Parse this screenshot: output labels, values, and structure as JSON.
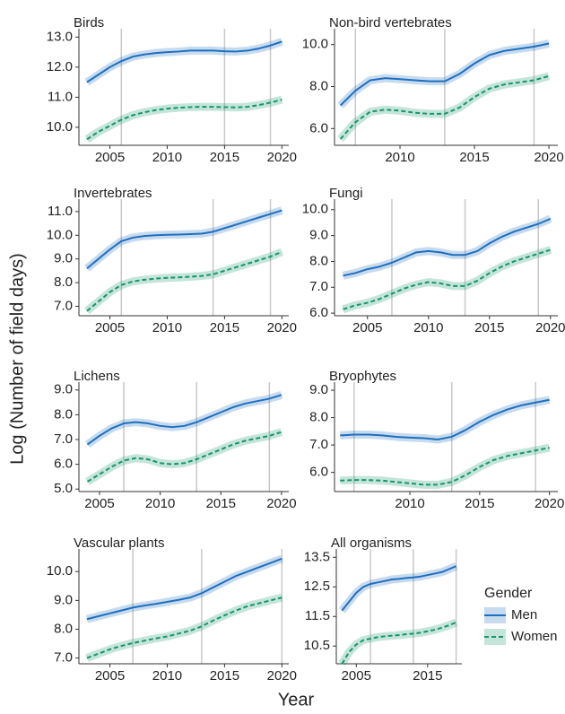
{
  "y_label": "Log (Number of field days)",
  "x_label": "Year",
  "legend_title": "Gender",
  "chart_data": [
    {
      "type": "line",
      "title": "Birds",
      "x": [
        2003,
        2004,
        2005,
        2006,
        2007,
        2008,
        2009,
        2010,
        2011,
        2012,
        2013,
        2014,
        2015,
        2016,
        2017,
        2018,
        2019,
        2020
      ],
      "xlim": [
        2002.3,
        2020.6
      ],
      "xticks": [
        2005,
        2010,
        2015,
        2020
      ],
      "ylim": [
        9.4,
        13.1
      ],
      "yticks": [
        {
          "value": 10,
          "label": "10.0"
        },
        {
          "value": 11,
          "label": "11.0"
        },
        {
          "value": 12,
          "label": "12.0"
        },
        {
          "value": 13,
          "label": "13.0"
        }
      ],
      "vlines": [
        2006,
        2015,
        2019
      ],
      "series": [
        {
          "name": "Men",
          "color": "#1f6fbf",
          "dash": false,
          "values": [
            11.5,
            11.75,
            12.0,
            12.2,
            12.35,
            12.42,
            12.47,
            12.5,
            12.52,
            12.55,
            12.55,
            12.55,
            12.53,
            12.52,
            12.55,
            12.62,
            12.72,
            12.85
          ]
        },
        {
          "name": "Women",
          "color": "#16966a",
          "dash": true,
          "values": [
            9.6,
            9.85,
            10.05,
            10.25,
            10.4,
            10.5,
            10.57,
            10.62,
            10.65,
            10.67,
            10.68,
            10.68,
            10.67,
            10.66,
            10.68,
            10.74,
            10.82,
            10.92
          ]
        }
      ]
    },
    {
      "type": "line",
      "title": "Non-bird vertebrates",
      "x": [
        2006,
        2007,
        2008,
        2009,
        2010,
        2011,
        2012,
        2013,
        2014,
        2015,
        2016,
        2017,
        2018,
        2019,
        2020
      ],
      "xlim": [
        2005.6,
        2020.6
      ],
      "xticks": [
        2010,
        2015,
        2020
      ],
      "ylim": [
        5.2,
        10.5
      ],
      "yticks": [
        {
          "value": 6,
          "label": "6.0"
        },
        {
          "value": 8,
          "label": "8.0"
        },
        {
          "value": 10,
          "label": "10.0"
        }
      ],
      "vlines": [
        2007,
        2013,
        2019
      ],
      "series": [
        {
          "name": "Men",
          "color": "#1f6fbf",
          "dash": false,
          "values": [
            7.1,
            7.8,
            8.3,
            8.4,
            8.35,
            8.3,
            8.25,
            8.25,
            8.6,
            9.1,
            9.5,
            9.7,
            9.8,
            9.9,
            10.05
          ]
        },
        {
          "name": "Women",
          "color": "#16966a",
          "dash": true,
          "values": [
            5.5,
            6.3,
            6.8,
            6.9,
            6.85,
            6.75,
            6.7,
            6.7,
            7.0,
            7.5,
            7.9,
            8.1,
            8.2,
            8.3,
            8.5
          ]
        }
      ]
    },
    {
      "type": "line",
      "title": "Invertebrates",
      "x": [
        2003,
        2004,
        2005,
        2006,
        2007,
        2008,
        2009,
        2010,
        2011,
        2012,
        2013,
        2014,
        2015,
        2016,
        2017,
        2018,
        2019,
        2020
      ],
      "xlim": [
        2002.3,
        2020.6
      ],
      "xticks": [
        2005,
        2010,
        2015,
        2020
      ],
      "ylim": [
        6.6,
        11.3
      ],
      "yticks": [
        {
          "value": 7,
          "label": "7.0"
        },
        {
          "value": 8,
          "label": "8.0"
        },
        {
          "value": 9,
          "label": "9.0"
        },
        {
          "value": 10,
          "label": "10.0"
        },
        {
          "value": 11,
          "label": "11.0"
        }
      ],
      "vlines": [
        2006,
        2014,
        2019
      ],
      "series": [
        {
          "name": "Men",
          "color": "#1f6fbf",
          "dash": false,
          "values": [
            8.6,
            9.0,
            9.4,
            9.75,
            9.9,
            9.97,
            10.0,
            10.02,
            10.03,
            10.05,
            10.07,
            10.15,
            10.3,
            10.45,
            10.6,
            10.75,
            10.9,
            11.05
          ]
        },
        {
          "name": "Women",
          "color": "#16966a",
          "dash": true,
          "values": [
            6.8,
            7.2,
            7.6,
            7.9,
            8.05,
            8.12,
            8.17,
            8.2,
            8.22,
            8.25,
            8.28,
            8.35,
            8.5,
            8.65,
            8.8,
            8.95,
            9.1,
            9.3
          ]
        }
      ]
    },
    {
      "type": "line",
      "title": "Fungi",
      "x": [
        2003,
        2004,
        2005,
        2006,
        2007,
        2008,
        2009,
        2010,
        2011,
        2012,
        2013,
        2014,
        2015,
        2016,
        2017,
        2018,
        2019,
        2020
      ],
      "xlim": [
        2002.3,
        2020.6
      ],
      "xticks": [
        2005,
        2010,
        2015,
        2020
      ],
      "ylim": [
        5.9,
        10.2
      ],
      "yticks": [
        {
          "value": 6,
          "label": "6.0"
        },
        {
          "value": 7,
          "label": "7.0"
        },
        {
          "value": 8,
          "label": "8.0"
        },
        {
          "value": 9,
          "label": "9.0"
        },
        {
          "value": 10,
          "label": "10.0"
        }
      ],
      "vlines": [
        2007,
        2013,
        2019
      ],
      "series": [
        {
          "name": "Men",
          "color": "#1f6fbf",
          "dash": false,
          "values": [
            7.45,
            7.55,
            7.7,
            7.8,
            7.95,
            8.15,
            8.35,
            8.4,
            8.35,
            8.25,
            8.25,
            8.4,
            8.7,
            8.95,
            9.15,
            9.3,
            9.45,
            9.65
          ]
        },
        {
          "name": "Women",
          "color": "#16966a",
          "dash": true,
          "values": [
            6.15,
            6.3,
            6.4,
            6.55,
            6.75,
            6.95,
            7.1,
            7.2,
            7.15,
            7.05,
            7.05,
            7.25,
            7.55,
            7.8,
            8.0,
            8.15,
            8.3,
            8.45
          ]
        }
      ]
    },
    {
      "type": "line",
      "title": "Lichens",
      "x": [
        2004,
        2005,
        2006,
        2007,
        2008,
        2009,
        2010,
        2011,
        2012,
        2013,
        2014,
        2015,
        2016,
        2017,
        2018,
        2019,
        2020
      ],
      "xlim": [
        2003.3,
        2020.6
      ],
      "xticks": [
        2005,
        2010,
        2015,
        2020
      ],
      "ylim": [
        4.9,
        9.1
      ],
      "yticks": [
        {
          "value": 5,
          "label": "5.0"
        },
        {
          "value": 6,
          "label": "6.0"
        },
        {
          "value": 7,
          "label": "7.0"
        },
        {
          "value": 8,
          "label": "8.0"
        },
        {
          "value": 9,
          "label": "9.0"
        }
      ],
      "vlines": [
        2007,
        2013,
        2019
      ],
      "series": [
        {
          "name": "Men",
          "color": "#1f6fbf",
          "dash": false,
          "values": [
            6.8,
            7.15,
            7.45,
            7.65,
            7.7,
            7.65,
            7.55,
            7.5,
            7.55,
            7.7,
            7.9,
            8.1,
            8.3,
            8.45,
            8.55,
            8.65,
            8.8
          ]
        },
        {
          "name": "Women",
          "color": "#16966a",
          "dash": true,
          "values": [
            5.3,
            5.6,
            5.9,
            6.15,
            6.25,
            6.2,
            6.05,
            6.0,
            6.05,
            6.2,
            6.4,
            6.6,
            6.8,
            6.95,
            7.05,
            7.15,
            7.3
          ]
        }
      ]
    },
    {
      "type": "line",
      "title": "Bryophytes",
      "x": [
        2005,
        2006,
        2007,
        2008,
        2009,
        2010,
        2011,
        2012,
        2013,
        2014,
        2015,
        2016,
        2017,
        2018,
        2019,
        2020
      ],
      "xlim": [
        2004.6,
        2020.6
      ],
      "xticks": [
        2010,
        2015,
        2020
      ],
      "ylim": [
        5.3,
        9.1
      ],
      "yticks": [
        {
          "value": 6,
          "label": "6.0"
        },
        {
          "value": 7,
          "label": "7.0"
        },
        {
          "value": 8,
          "label": "8.0"
        },
        {
          "value": 9,
          "label": "9.0"
        }
      ],
      "vlines": [
        2006,
        2013,
        2019
      ],
      "series": [
        {
          "name": "Men",
          "color": "#1f6fbf",
          "dash": false,
          "values": [
            7.35,
            7.38,
            7.38,
            7.35,
            7.3,
            7.27,
            7.25,
            7.2,
            7.3,
            7.55,
            7.85,
            8.1,
            8.3,
            8.45,
            8.55,
            8.65
          ]
        },
        {
          "name": "Women",
          "color": "#16966a",
          "dash": true,
          "values": [
            5.7,
            5.72,
            5.72,
            5.7,
            5.65,
            5.6,
            5.55,
            5.55,
            5.65,
            5.9,
            6.2,
            6.45,
            6.6,
            6.7,
            6.8,
            6.9
          ]
        }
      ]
    },
    {
      "type": "line",
      "title": "Vascular plants",
      "x": [
        2003,
        2004,
        2005,
        2006,
        2007,
        2008,
        2009,
        2010,
        2011,
        2012,
        2013,
        2014,
        2015,
        2016,
        2017,
        2018,
        2019,
        2020
      ],
      "xlim": [
        2002.3,
        2020.6
      ],
      "xticks": [
        2005,
        2010,
        2015,
        2020
      ],
      "ylim": [
        6.8,
        10.6
      ],
      "yticks": [
        {
          "value": 7,
          "label": "7.0"
        },
        {
          "value": 8,
          "label": "8.0"
        },
        {
          "value": 9,
          "label": "9.0"
        },
        {
          "value": 10,
          "label": "10.0"
        }
      ],
      "vlines": [
        2007,
        2013,
        2020
      ],
      "series": [
        {
          "name": "Men",
          "color": "#1f6fbf",
          "dash": false,
          "values": [
            8.35,
            8.45,
            8.55,
            8.65,
            8.75,
            8.82,
            8.88,
            8.95,
            9.02,
            9.1,
            9.25,
            9.45,
            9.65,
            9.85,
            10.0,
            10.15,
            10.3,
            10.45
          ]
        },
        {
          "name": "Women",
          "color": "#16966a",
          "dash": true,
          "values": [
            7.0,
            7.15,
            7.3,
            7.42,
            7.52,
            7.6,
            7.68,
            7.75,
            7.85,
            7.95,
            8.1,
            8.3,
            8.48,
            8.65,
            8.8,
            8.9,
            9.0,
            9.1
          ]
        }
      ]
    },
    {
      "type": "line",
      "title": "All organisms",
      "x": [
        2003,
        2004,
        2005,
        2006,
        2007,
        2008,
        2009,
        2010,
        2011,
        2012,
        2013,
        2014,
        2015,
        2016,
        2017,
        2018,
        2019
      ],
      "xlim": [
        2002.2,
        2019.8
      ],
      "xticks": [
        2005,
        2015
      ],
      "ylim": [
        9.9,
        13.6
      ],
      "yticks": [
        10.5,
        11.5,
        12.5,
        13.5
      ],
      "vlines": [
        2007,
        2013,
        2019
      ],
      "series": [
        {
          "name": "Men",
          "color": "#1f6fbf",
          "dash": false,
          "values": [
            11.7,
            12.0,
            12.3,
            12.5,
            12.6,
            12.65,
            12.7,
            12.75,
            12.77,
            12.8,
            12.82,
            12.85,
            12.9,
            12.95,
            13.0,
            13.1,
            13.2
          ]
        },
        {
          "name": "Women",
          "color": "#16966a",
          "dash": true,
          "values": [
            9.9,
            10.3,
            10.55,
            10.7,
            10.75,
            10.8,
            10.83,
            10.85,
            10.87,
            10.9,
            10.92,
            10.95,
            11.0,
            11.05,
            11.12,
            11.2,
            11.3
          ]
        }
      ]
    }
  ]
}
